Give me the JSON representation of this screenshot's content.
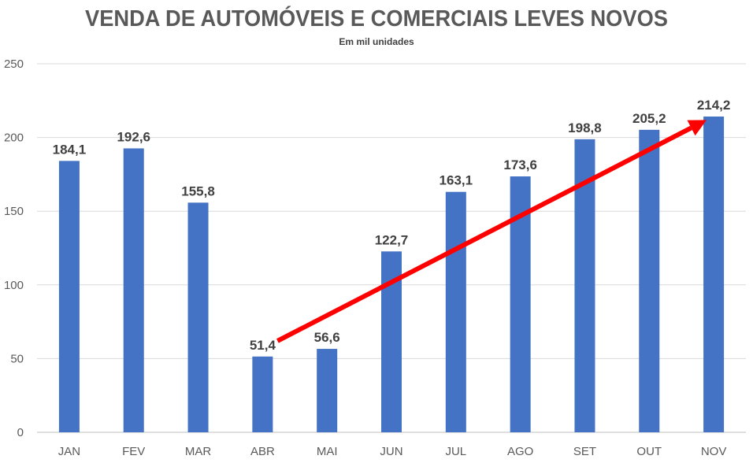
{
  "chart_data": {
    "type": "bar",
    "title": "VENDA DE AUTOMÓVEIS E COMERCIAIS LEVES NOVOS",
    "subtitle": "Em mil unidades",
    "xlabel": "",
    "ylabel": "",
    "categories": [
      "JAN",
      "FEV",
      "MAR",
      "ABR",
      "MAI",
      "JUN",
      "JUL",
      "AGO",
      "SET",
      "OUT",
      "NOV"
    ],
    "values": [
      184.1,
      192.6,
      155.8,
      51.4,
      56.6,
      122.7,
      163.1,
      173.6,
      198.8,
      205.2,
      214.2
    ],
    "data_labels": [
      "184,1",
      "192,6",
      "155,8",
      "51,4",
      "56,6",
      "122,7",
      "163,1",
      "173,6",
      "198,8",
      "205,2",
      "214,2"
    ],
    "ylim": [
      0,
      250
    ],
    "yticks": [
      0,
      50,
      100,
      150,
      200,
      250
    ],
    "grid": true,
    "bar_color": "#4472C4",
    "annotation": {
      "type": "arrow",
      "from_category": "ABR",
      "to_category": "NOV",
      "color": "#FF0000",
      "from_value": 62,
      "to_value": 214
    }
  }
}
